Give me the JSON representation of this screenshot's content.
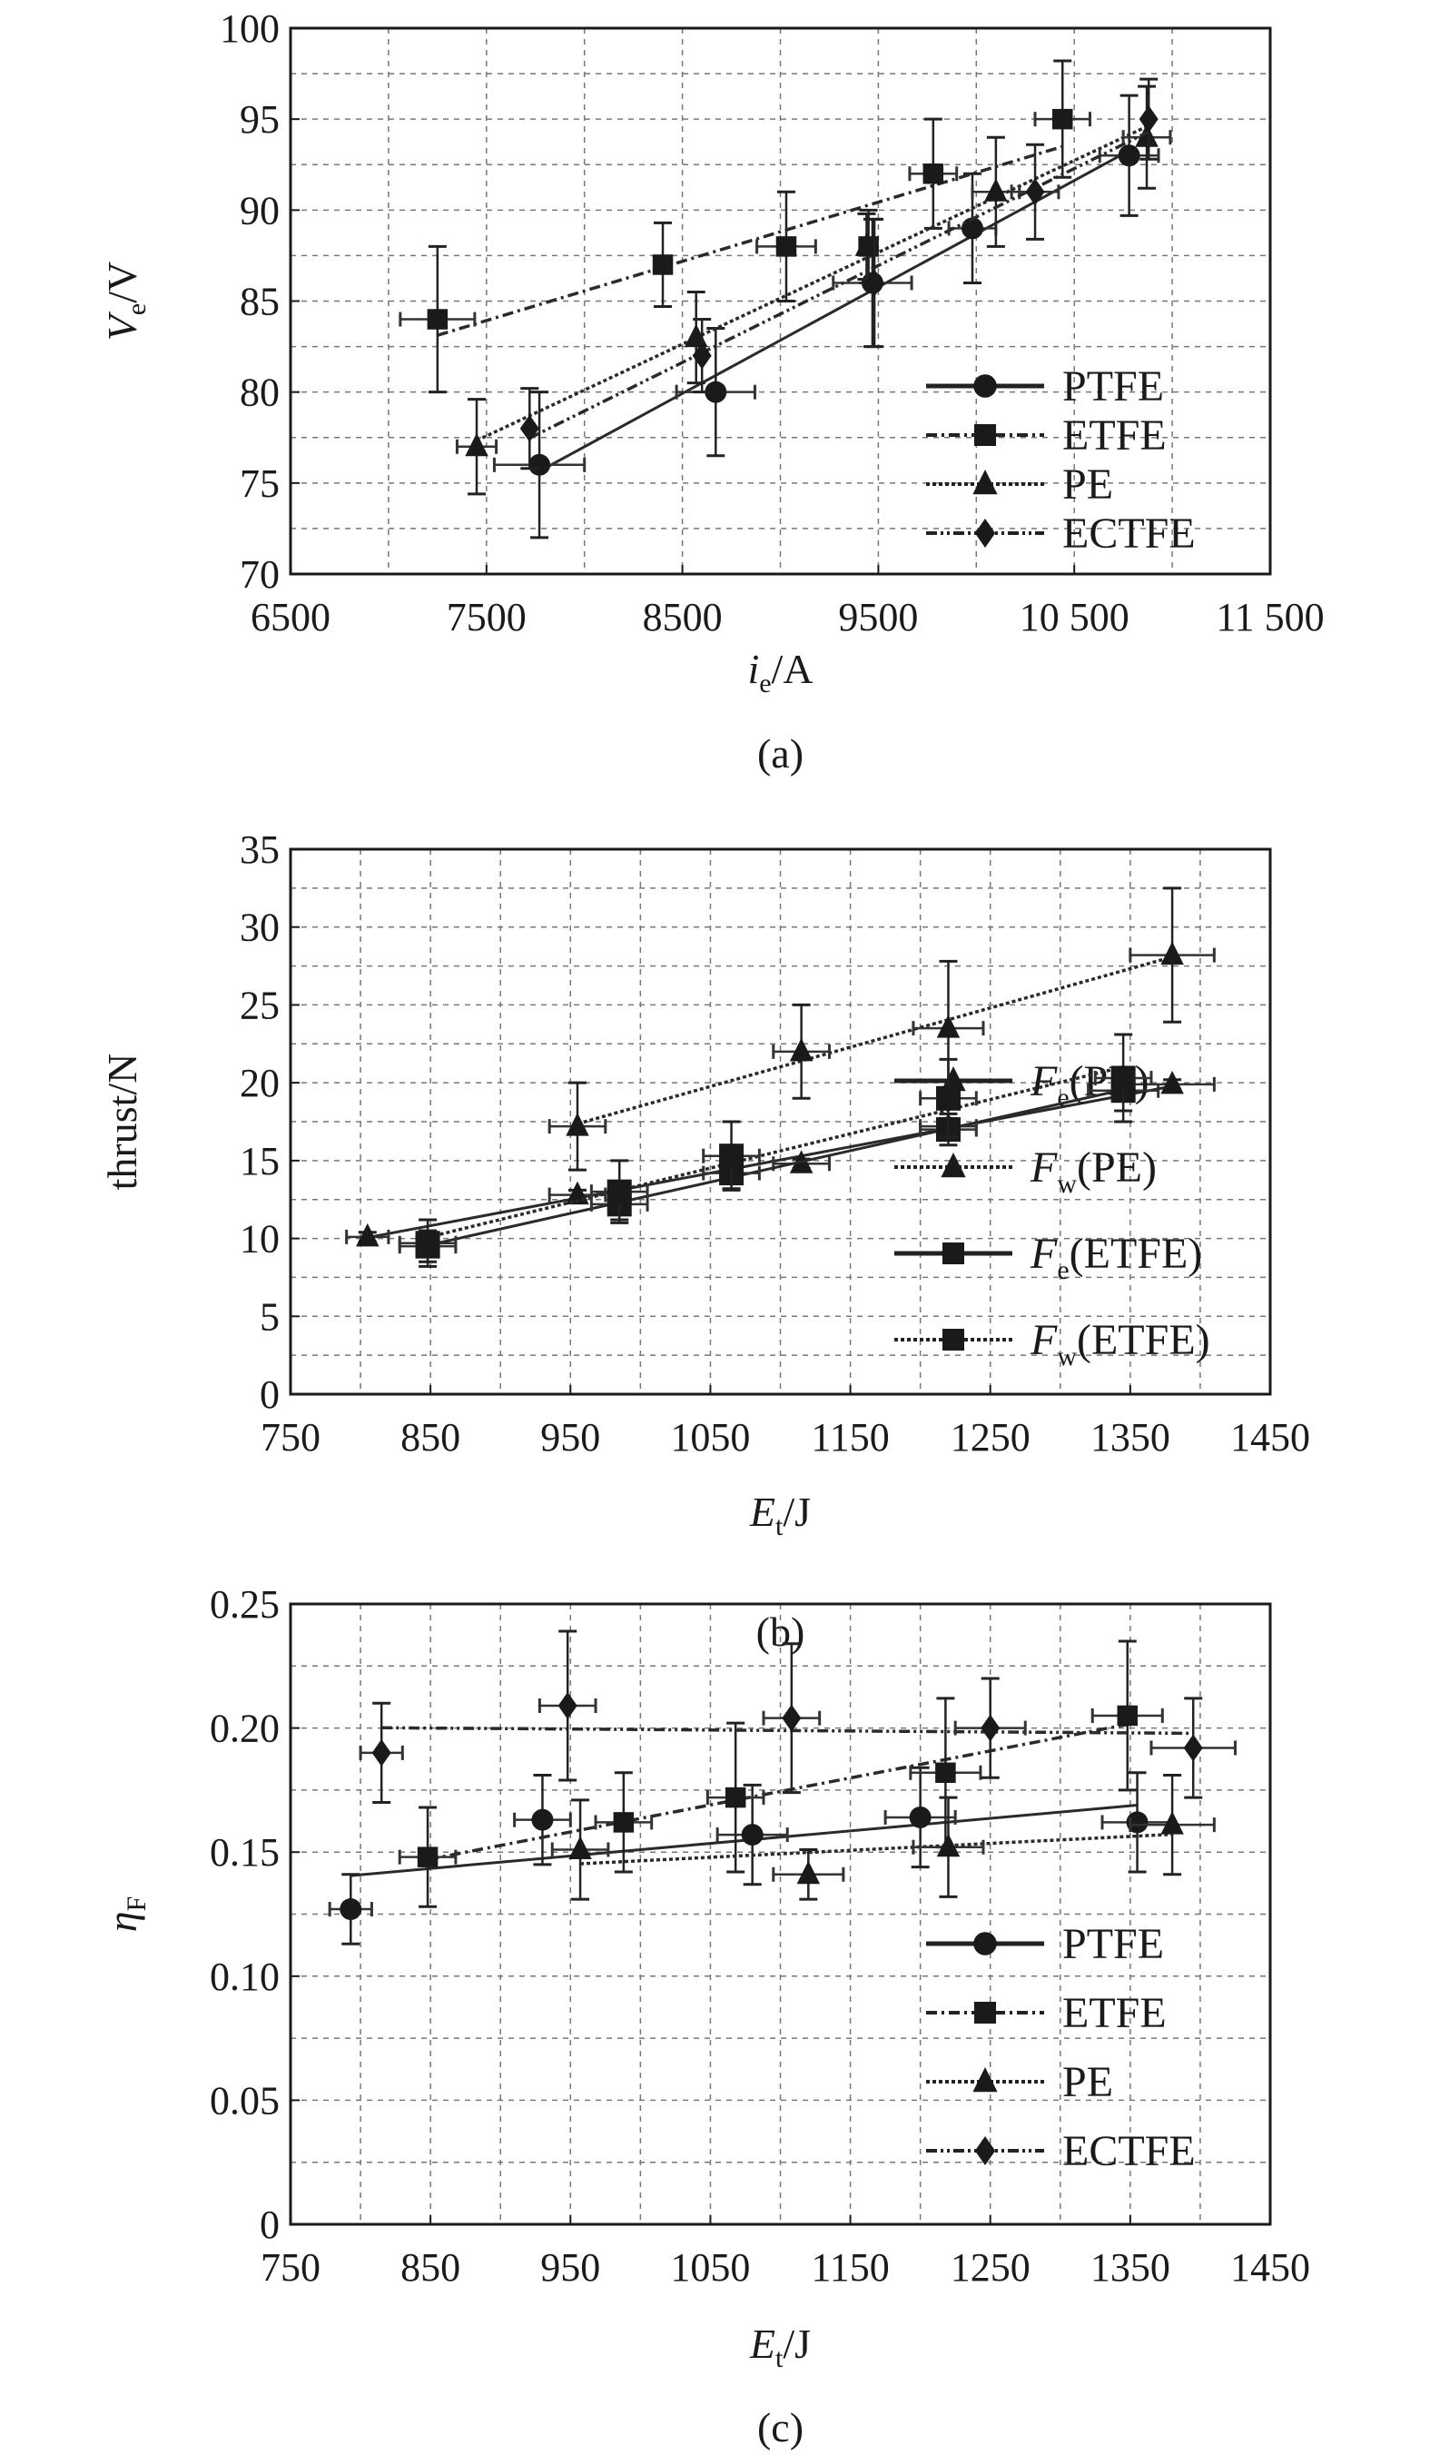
{
  "chart_data": [
    {
      "type": "scatter",
      "panel_label": "(a)",
      "xlabel": [
        "i",
        "e",
        "/A"
      ],
      "ylabel": [
        "V",
        "e",
        "/V"
      ],
      "xlim": [
        6500,
        11500
      ],
      "ylim": [
        70,
        100
      ],
      "xticks": [
        6500,
        7500,
        8500,
        9500,
        10500,
        11500
      ],
      "xtick_labels": [
        "6500",
        "7500",
        "8500",
        "9500",
        "10 500",
        "11 500"
      ],
      "yticks": [
        70,
        75,
        80,
        85,
        90,
        95,
        100
      ],
      "ytick_labels": [
        "70",
        "75",
        "80",
        "85",
        "90",
        "95",
        "100"
      ],
      "grid": true,
      "legend_position": "bottom-right",
      "series": [
        {
          "name": [
            "PTFE",
            "",
            ""
          ],
          "marker": "circle",
          "line": "solid",
          "points": [
            [
              7770,
              76,
              4,
              230
            ],
            [
              8670,
              80,
              3.5,
              200
            ],
            [
              9470,
              86,
              3.5,
              200
            ],
            [
              9980,
              89,
              3,
              120
            ],
            [
              10780,
              93,
              3.3,
              150
            ]
          ]
        },
        {
          "name": [
            "ETFE",
            "",
            ""
          ],
          "marker": "square",
          "line": "dashdot",
          "points": [
            [
              7250,
              84,
              4,
              190
            ],
            [
              8400,
              87,
              2.3,
              0
            ],
            [
              9030,
              88,
              3,
              150
            ],
            [
              9450,
              88,
              2,
              0
            ],
            [
              9780,
              92,
              3,
              120
            ],
            [
              10440,
              95,
              3.2,
              140
            ]
          ]
        },
        {
          "name": [
            "PE",
            "",
            ""
          ],
          "marker": "triangle",
          "line": "dotted",
          "points": [
            [
              7450,
              77,
              2.6,
              100
            ],
            [
              8570,
              83,
              2.5,
              0
            ],
            [
              9440,
              88,
              1.8,
              0
            ],
            [
              10100,
              91,
              3,
              120
            ],
            [
              10870,
              94,
              2.8,
              120
            ]
          ]
        },
        {
          "name": [
            "ECTFE",
            "",
            ""
          ],
          "marker": "diamond",
          "line": "dashdotdot",
          "points": [
            [
              7720,
              78,
              2.2,
              0
            ],
            [
              8600,
              82,
              2,
              0
            ],
            [
              9480,
              86,
              3.5,
              0
            ],
            [
              10300,
              91,
              2.6,
              120
            ],
            [
              10880,
              95,
              2.2,
              0
            ]
          ]
        }
      ]
    },
    {
      "type": "scatter",
      "panel_label": "(b)",
      "xlabel": [
        "E",
        "t",
        "/J"
      ],
      "ylabel": [
        "thrust/N",
        "",
        ""
      ],
      "xlim": [
        750,
        1450
      ],
      "ylim": [
        0,
        35
      ],
      "xticks": [
        750,
        850,
        950,
        1050,
        1150,
        1250,
        1350,
        1450
      ],
      "xtick_labels": [
        "750",
        "850",
        "950",
        "1050",
        "1150",
        "1250",
        "1350",
        "1450"
      ],
      "yticks": [
        0,
        5,
        10,
        15,
        20,
        25,
        30,
        35
      ],
      "ytick_labels": [
        "0",
        "5",
        "10",
        "15",
        "20",
        "25",
        "30",
        "35"
      ],
      "grid": true,
      "legend_position": "bottom-right",
      "series": [
        {
          "name": [
            "F",
            "e",
            "(PE)"
          ],
          "marker": "triangle",
          "line": "solid",
          "points": [
            [
              805,
              10.1,
              0.3,
              15
            ],
            [
              955,
              12.8,
              0.3,
              20
            ],
            [
              1115,
              14.8,
              0.3,
              20
            ],
            [
              1220,
              17.2,
              0.5,
              20
            ],
            [
              1380,
              19.9,
              0.3,
              30
            ]
          ]
        },
        {
          "name": [
            "F",
            "w",
            "(PE)"
          ],
          "marker": "triangle",
          "line": "dotted",
          "points": [
            [
              955,
              17.2,
              2.8,
              20
            ],
            [
              1115,
              22,
              3,
              20
            ],
            [
              1220,
              23.5,
              4.3,
              25
            ],
            [
              1380,
              28.2,
              4.3,
              30
            ]
          ]
        },
        {
          "name": [
            "F",
            "e",
            "(ETFE)"
          ],
          "marker": "square",
          "line": "solid",
          "points": [
            [
              848,
              9.5,
              1,
              20
            ],
            [
              985,
              12.2,
              1,
              20
            ],
            [
              1065,
              14.2,
              1,
              20
            ],
            [
              1220,
              17,
              1,
              20
            ],
            [
              1345,
              19.5,
              1.3,
              25
            ]
          ]
        },
        {
          "name": [
            "F",
            "w",
            "(ETFE)"
          ],
          "marker": "square",
          "line": "dotted",
          "points": [
            [
              848,
              9.7,
              1.5,
              20
            ],
            [
              985,
              13,
              2,
              20
            ],
            [
              1065,
              15.3,
              2.2,
              20
            ],
            [
              1220,
              19,
              2.5,
              20
            ],
            [
              1345,
              20.3,
              2.8,
              20
            ]
          ]
        }
      ]
    },
    {
      "type": "scatter",
      "panel_label": "(c)",
      "xlabel": [
        "E",
        "t",
        "/J"
      ],
      "ylabel": [
        "η",
        "F",
        ""
      ],
      "xlim": [
        750,
        1450
      ],
      "ylim": [
        0,
        0.25
      ],
      "xticks": [
        750,
        850,
        950,
        1050,
        1150,
        1250,
        1350,
        1450
      ],
      "xtick_labels": [
        "750",
        "850",
        "950",
        "1050",
        "1150",
        "1250",
        "1350",
        "1450"
      ],
      "yticks": [
        0,
        0.05,
        0.1,
        0.15,
        0.2,
        0.25
      ],
      "ytick_labels": [
        "0",
        "0.05",
        "0.10",
        "0.15",
        "0.20",
        "0.25"
      ],
      "grid": true,
      "legend_position": "bottom-right",
      "series": [
        {
          "name": [
            "PTFE",
            "",
            ""
          ],
          "marker": "circle",
          "line": "solid",
          "points": [
            [
              793,
              0.127,
              0.014,
              15
            ],
            [
              930,
              0.163,
              0.018,
              20
            ],
            [
              1080,
              0.157,
              0.02,
              25
            ],
            [
              1200,
              0.164,
              0.02,
              25
            ],
            [
              1355,
              0.162,
              0.02,
              25
            ]
          ]
        },
        {
          "name": [
            "ETFE",
            "",
            ""
          ],
          "marker": "square",
          "line": "dashdot",
          "points": [
            [
              848,
              0.148,
              0.02,
              20
            ],
            [
              988,
              0.162,
              0.02,
              20
            ],
            [
              1068,
              0.172,
              0.03,
              20
            ],
            [
              1218,
              0.182,
              0.03,
              25
            ],
            [
              1348,
              0.205,
              0.03,
              25
            ]
          ]
        },
        {
          "name": [
            "PE",
            "",
            ""
          ],
          "marker": "triangle",
          "line": "dotted",
          "points": [
            [
              957,
              0.151,
              0.02,
              20
            ],
            [
              1120,
              0.141,
              0.01,
              25
            ],
            [
              1220,
              0.152,
              0.02,
              25
            ],
            [
              1380,
              0.161,
              0.02,
              30
            ]
          ]
        },
        {
          "name": [
            "ECTFE",
            "",
            ""
          ],
          "marker": "diamond",
          "line": "dashdotdot",
          "points": [
            [
              815,
              0.19,
              0.02,
              15
            ],
            [
              948,
              0.209,
              0.03,
              20
            ],
            [
              1108,
              0.204,
              0.03,
              20
            ],
            [
              1250,
              0.2,
              0.02,
              25
            ],
            [
              1395,
              0.192,
              0.02,
              30
            ]
          ]
        }
      ]
    }
  ]
}
